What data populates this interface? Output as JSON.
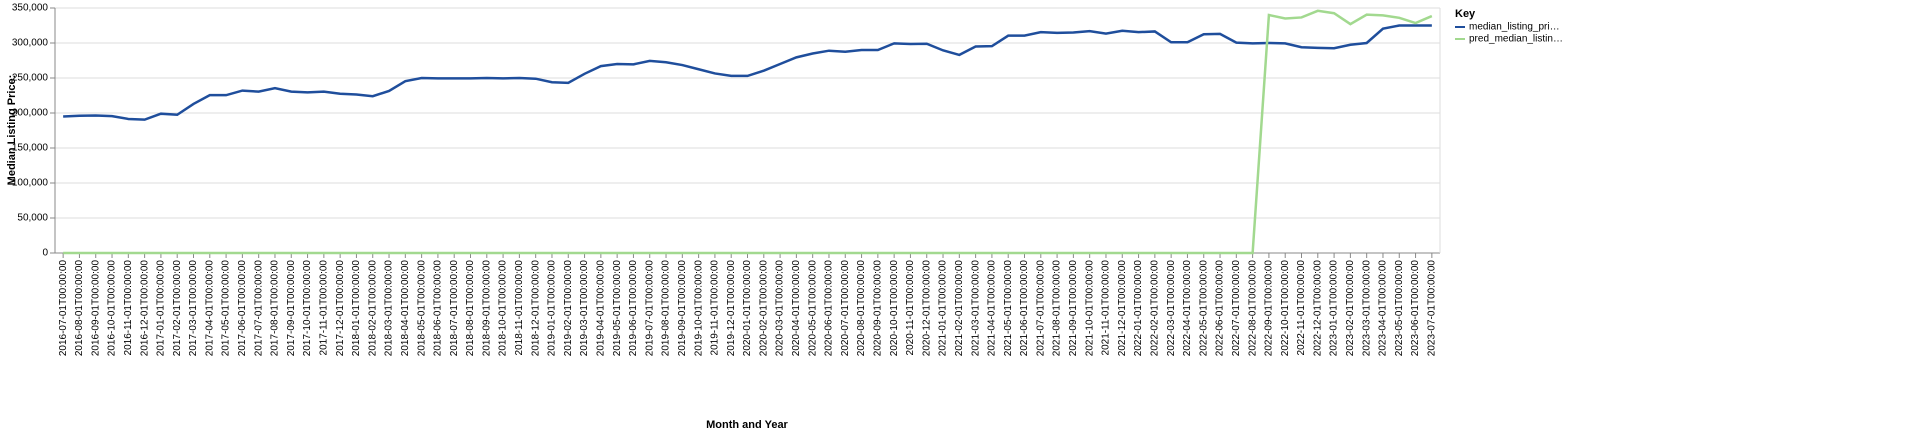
{
  "chart_data": {
    "type": "line",
    "y_label": "Median Listing Price:",
    "x_label": "Month and Year",
    "legend_title": "Key",
    "categories": [
      "2016-07-01T00:00:00",
      "2016-08-01T00:00:00",
      "2016-09-01T00:00:00",
      "2016-10-01T00:00:00",
      "2016-11-01T00:00:00",
      "2016-12-01T00:00:00",
      "2017-01-01T00:00:00",
      "2017-02-01T00:00:00",
      "2017-03-01T00:00:00",
      "2017-04-01T00:00:00",
      "2017-05-01T00:00:00",
      "2017-06-01T00:00:00",
      "2017-07-01T00:00:00",
      "2017-08-01T00:00:00",
      "2017-09-01T00:00:00",
      "2017-10-01T00:00:00",
      "2017-11-01T00:00:00",
      "2017-12-01T00:00:00",
      "2018-01-01T00:00:00",
      "2018-02-01T00:00:00",
      "2018-03-01T00:00:00",
      "2018-04-01T00:00:00",
      "2018-05-01T00:00:00",
      "2018-06-01T00:00:00",
      "2018-07-01T00:00:00",
      "2018-08-01T00:00:00",
      "2018-09-01T00:00:00",
      "2018-10-01T00:00:00",
      "2018-11-01T00:00:00",
      "2018-12-01T00:00:00",
      "2019-01-01T00:00:00",
      "2019-02-01T00:00:00",
      "2019-03-01T00:00:00",
      "2019-04-01T00:00:00",
      "2019-05-01T00:00:00",
      "2019-06-01T00:00:00",
      "2019-07-01T00:00:00",
      "2019-08-01T00:00:00",
      "2019-09-01T00:00:00",
      "2019-10-01T00:00:00",
      "2019-11-01T00:00:00",
      "2019-12-01T00:00:00",
      "2020-01-01T00:00:00",
      "2020-02-01T00:00:00",
      "2020-03-01T00:00:00",
      "2020-04-01T00:00:00",
      "2020-05-01T00:00:00",
      "2020-06-01T00:00:00",
      "2020-07-01T00:00:00",
      "2020-08-01T00:00:00",
      "2020-09-01T00:00:00",
      "2020-10-01T00:00:00",
      "2020-11-01T00:00:00",
      "2020-12-01T00:00:00",
      "2021-01-01T00:00:00",
      "2021-02-01T00:00:00",
      "2021-03-01T00:00:00",
      "2021-04-01T00:00:00",
      "2021-05-01T00:00:00",
      "2021-06-01T00:00:00",
      "2021-07-01T00:00:00",
      "2021-08-01T00:00:00",
      "2021-09-01T00:00:00",
      "2021-10-01T00:00:00",
      "2021-11-01T00:00:00",
      "2021-12-01T00:00:00",
      "2022-01-01T00:00:00",
      "2022-02-01T00:00:00",
      "2022-03-01T00:00:00",
      "2022-04-01T00:00:00",
      "2022-05-01T00:00:00",
      "2022-06-01T00:00:00",
      "2022-07-01T00:00:00",
      "2022-08-01T00:00:00",
      "2022-09-01T00:00:00",
      "2022-10-01T00:00:00",
      "2022-11-01T00:00:00",
      "2022-12-01T00:00:00",
      "2023-01-01T00:00:00",
      "2023-02-01T00:00:00",
      "2023-03-01T00:00:00",
      "2023-04-01T00:00:00",
      "2023-05-01T00:00:00",
      "2023-06-01T00:00:00",
      "2023-07-01T00:00:00"
    ],
    "series": [
      {
        "name": "median_listing_pri…",
        "color": "#1f4e9c",
        "values": [
          195000,
          196000,
          196500,
          195500,
          191500,
          190500,
          199000,
          197500,
          213000,
          225500,
          225500,
          232000,
          230500,
          235500,
          230500,
          229500,
          230500,
          227500,
          226500,
          224000,
          231500,
          245500,
          250000,
          249500,
          249500,
          249500,
          250000,
          249500,
          250000,
          249000,
          244000,
          243000,
          256000,
          267000,
          270000,
          269500,
          274500,
          272500,
          268500,
          262500,
          256500,
          253000,
          253000,
          260500,
          270000,
          279500,
          285000,
          289000,
          287500,
          290000,
          290000,
          299500,
          298500,
          299000,
          289500,
          283000,
          295000,
          295500,
          310500,
          310500,
          315500,
          314500,
          315000,
          317000,
          313500,
          317500,
          315500,
          316500,
          301000,
          301000,
          312500,
          313000,
          300500,
          299500,
          300000,
          299500,
          294000,
          293000,
          292500,
          297500,
          300000,
          320500,
          325000,
          325000,
          325000
        ]
      },
      {
        "name": "pred_median_listin…",
        "color": "#a2d98f",
        "values": [
          0,
          0,
          0,
          0,
          0,
          0,
          0,
          0,
          0,
          0,
          0,
          0,
          0,
          0,
          0,
          0,
          0,
          0,
          0,
          0,
          0,
          0,
          0,
          0,
          0,
          0,
          0,
          0,
          0,
          0,
          0,
          0,
          0,
          0,
          0,
          0,
          0,
          0,
          0,
          0,
          0,
          0,
          0,
          0,
          0,
          0,
          0,
          0,
          0,
          0,
          0,
          0,
          0,
          0,
          0,
          0,
          0,
          0,
          0,
          0,
          0,
          0,
          0,
          0,
          0,
          0,
          0,
          0,
          0,
          0,
          0,
          0,
          0,
          0,
          340000,
          335000,
          336500,
          346000,
          342500,
          327000,
          340500,
          339500,
          336000,
          328500,
          338500
        ]
      }
    ],
    "ylim": [
      0,
      350000
    ],
    "yticks": [
      0,
      {
        "value": 50000,
        "label": "50,000"
      },
      {
        "value": 100000,
        "label": "100,000"
      },
      {
        "value": 150000,
        "label": "150,000"
      },
      {
        "value": 200000,
        "label": "200,000"
      },
      {
        "value": 250000,
        "label": "250,000"
      },
      {
        "value": 300000,
        "label": "300,000"
      },
      {
        "value": 350000,
        "label": "350,000"
      }
    ],
    "grid": true
  }
}
